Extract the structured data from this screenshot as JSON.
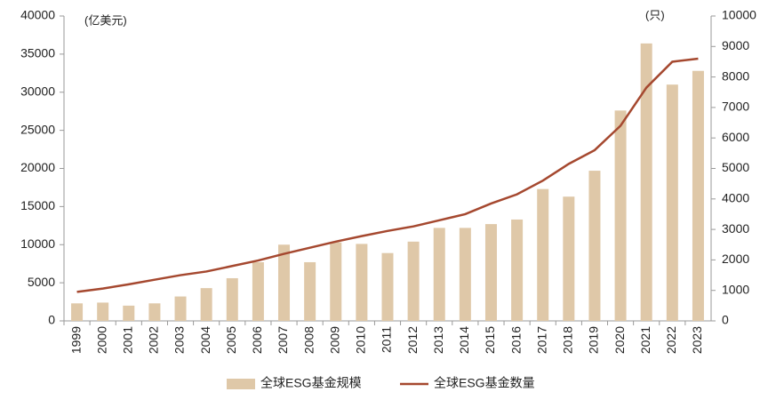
{
  "chart_data": {
    "type": "bar-line",
    "left_unit": "(亿美元)",
    "right_unit": "(只)",
    "categories": [
      "1999",
      "2000",
      "2001",
      "2002",
      "2003",
      "2004",
      "2005",
      "2006",
      "2007",
      "2008",
      "2009",
      "2010",
      "2011",
      "2012",
      "2013",
      "2014",
      "2015",
      "2016",
      "2017",
      "2018",
      "2019",
      "2020",
      "2021",
      "2022",
      "2023"
    ],
    "series": [
      {
        "name": "全球ESG基金规模",
        "type": "bar",
        "color": "#dfc8a8",
        "values": [
          2300,
          2400,
          2000,
          2300,
          3200,
          4300,
          5600,
          7700,
          10000,
          7700,
          10300,
          10100,
          8900,
          10400,
          12200,
          12200,
          12700,
          13300,
          17300,
          16300,
          19700,
          27600,
          36400,
          31000,
          32800
        ]
      },
      {
        "name": "全球ESG基金数量",
        "type": "line",
        "axis": "y2",
        "color": "#a5482f",
        "values": [
          950,
          1060,
          1200,
          1350,
          1500,
          1620,
          1800,
          1980,
          2200,
          2400,
          2600,
          2780,
          2950,
          3100,
          3300,
          3500,
          3850,
          4150,
          4600,
          5150,
          5600,
          6400,
          7650,
          8500,
          8600
        ]
      }
    ],
    "ylim": [
      0,
      40000
    ],
    "yticks": [
      0,
      5000,
      10000,
      15000,
      20000,
      25000,
      30000,
      35000,
      40000
    ],
    "y2lim": [
      0,
      10000
    ],
    "y2ticks": [
      0,
      1000,
      2000,
      3000,
      4000,
      5000,
      6000,
      7000,
      8000,
      9000,
      10000
    ],
    "legend": "bottom"
  }
}
